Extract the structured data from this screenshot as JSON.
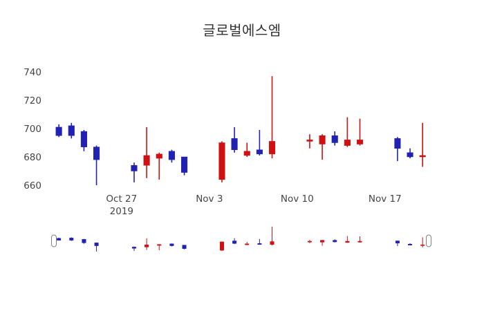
{
  "title": "글로벌에스엠",
  "colors": {
    "increasing": "#cf1111",
    "decreasing": "#2222b2",
    "axis_text": "#444444",
    "title_text": "#333333",
    "handle_fill": "#ffffff",
    "handle_stroke": "#7f7f7f",
    "background": "#ffffff"
  },
  "y_axis": {
    "ticks": [
      660,
      680,
      700,
      720,
      740
    ]
  },
  "x_axis": {
    "ticks": [
      {
        "label": "Oct 27",
        "sublabel": "2019",
        "date": "2019-10-27"
      },
      {
        "label": "Nov 3",
        "date": "2019-11-03"
      },
      {
        "label": "Nov 10",
        "date": "2019-11-10"
      },
      {
        "label": "Nov 17",
        "date": "2019-11-17"
      }
    ]
  },
  "chart_data": {
    "type": "candlestick",
    "title": "글로벌에스엠",
    "x": [
      "2019-10-22",
      "2019-10-23",
      "2019-10-24",
      "2019-10-25",
      "2019-10-28",
      "2019-10-29",
      "2019-10-30",
      "2019-10-31",
      "2019-11-01",
      "2019-11-04",
      "2019-11-05",
      "2019-11-06",
      "2019-11-07",
      "2019-11-08",
      "2019-11-11",
      "2019-11-12",
      "2019-11-13",
      "2019-11-14",
      "2019-11-15",
      "2019-11-18",
      "2019-11-19",
      "2019-11-20"
    ],
    "open": [
      701,
      702,
      698,
      687,
      674,
      674,
      679,
      684,
      680,
      664,
      693,
      681,
      685,
      682,
      691,
      689,
      695,
      688,
      689,
      693,
      683,
      680
    ],
    "high": [
      703,
      704,
      699,
      688,
      676,
      701,
      683,
      685,
      680,
      691,
      701,
      690,
      699,
      737,
      696,
      696,
      698,
      708,
      707,
      694,
      686,
      704
    ],
    "low": [
      694,
      693,
      684,
      660,
      662,
      665,
      664,
      676,
      667,
      662,
      683,
      680,
      681,
      679,
      686,
      678,
      688,
      687,
      688,
      677,
      679,
      673
    ],
    "close": [
      695,
      695,
      687,
      678,
      670,
      681,
      682,
      678,
      669,
      690,
      685,
      684,
      682,
      691,
      692,
      695,
      690,
      692,
      692,
      686,
      680,
      681
    ],
    "y_range": [
      655,
      745
    ],
    "increasing_color": "#cf1111",
    "decreasing_color": "#2222b2",
    "grid": "off",
    "legend": "off",
    "rangeslider": true
  }
}
